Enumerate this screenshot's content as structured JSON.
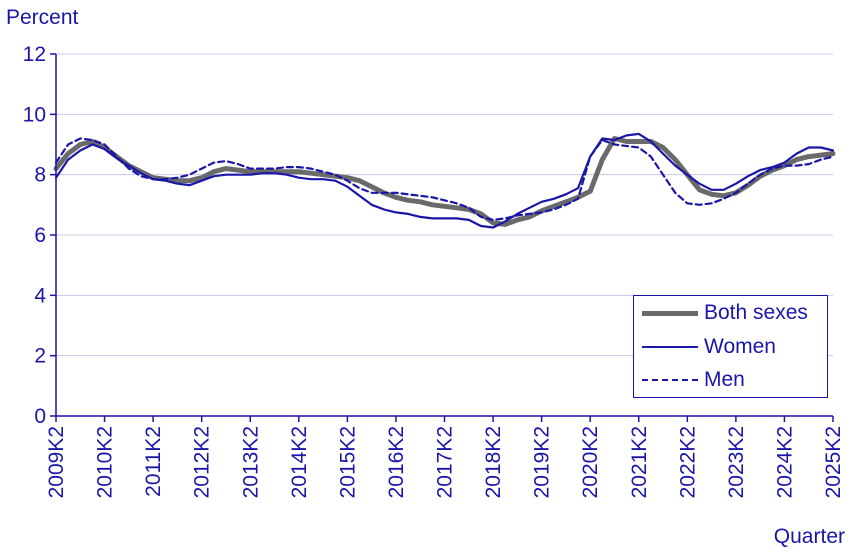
{
  "chart_data": {
    "type": "line",
    "ylabel": "Percent",
    "xlabel": "Quarter",
    "ylim": [
      0,
      12
    ],
    "yticks": [
      0,
      2,
      4,
      6,
      8,
      10,
      12
    ],
    "xtick_labels": [
      "2009K2",
      "2010K2",
      "2011K2",
      "2012K2",
      "2013K2",
      "2014K2",
      "2015K2",
      "2016K2",
      "2017K2",
      "2018K2",
      "2019K2",
      "2020K2",
      "2021K2",
      "2022K2",
      "2023K2",
      "2024K2",
      "2025K2"
    ],
    "grid": "horizontal",
    "legend_position": "bottom-right",
    "x": [
      "2009K2",
      "2009K3",
      "2009K4",
      "2010K1",
      "2010K2",
      "2010K3",
      "2010K4",
      "2011K1",
      "2011K2",
      "2011K3",
      "2011K4",
      "2012K1",
      "2012K2",
      "2012K3",
      "2012K4",
      "2013K1",
      "2013K2",
      "2013K3",
      "2013K4",
      "2014K1",
      "2014K2",
      "2014K3",
      "2014K4",
      "2015K1",
      "2015K2",
      "2015K3",
      "2015K4",
      "2016K1",
      "2016K2",
      "2016K3",
      "2016K4",
      "2017K1",
      "2017K2",
      "2017K3",
      "2017K4",
      "2018K1",
      "2018K2",
      "2018K3",
      "2018K4",
      "2019K1",
      "2019K2",
      "2019K3",
      "2019K4",
      "2020K1",
      "2020K2",
      "2020K3",
      "2020K4",
      "2021K1",
      "2021K2",
      "2021K3",
      "2021K4",
      "2022K1",
      "2022K2",
      "2022K3",
      "2022K4",
      "2023K1",
      "2023K2",
      "2023K3",
      "2023K4",
      "2024K1",
      "2024K2",
      "2024K3",
      "2024K4",
      "2025K1",
      "2025K2"
    ],
    "series": [
      {
        "name": "Both sexes",
        "color": "#6a6a6a",
        "style": "thick",
        "values": [
          8.2,
          8.7,
          9.0,
          9.1,
          8.9,
          8.6,
          8.3,
          8.1,
          7.9,
          7.85,
          7.8,
          7.8,
          7.9,
          8.1,
          8.2,
          8.15,
          8.1,
          8.1,
          8.1,
          8.1,
          8.1,
          8.05,
          8.0,
          7.95,
          7.9,
          7.8,
          7.6,
          7.4,
          7.25,
          7.15,
          7.1,
          7.0,
          6.95,
          6.9,
          6.85,
          6.7,
          6.4,
          6.35,
          6.5,
          6.6,
          6.8,
          6.95,
          7.1,
          7.25,
          7.45,
          8.5,
          9.2,
          9.1,
          9.1,
          9.1,
          8.9,
          8.5,
          8.0,
          7.5,
          7.35,
          7.3,
          7.4,
          7.65,
          7.95,
          8.15,
          8.3,
          8.5,
          8.6,
          8.65,
          8.7
        ]
      },
      {
        "name": "Women",
        "color": "#1a17a8",
        "style": "solid",
        "values": [
          7.9,
          8.5,
          8.8,
          9.0,
          8.85,
          8.55,
          8.3,
          8.05,
          7.85,
          7.8,
          7.7,
          7.65,
          7.8,
          7.95,
          8.0,
          8.0,
          8.0,
          8.05,
          8.05,
          8.0,
          7.9,
          7.85,
          7.85,
          7.8,
          7.6,
          7.3,
          7.0,
          6.85,
          6.75,
          6.7,
          6.6,
          6.55,
          6.55,
          6.55,
          6.5,
          6.3,
          6.25,
          6.45,
          6.7,
          6.9,
          7.1,
          7.2,
          7.35,
          7.55,
          8.6,
          9.2,
          9.15,
          9.3,
          9.35,
          9.1,
          8.7,
          8.3,
          8.0,
          7.7,
          7.5,
          7.5,
          7.7,
          7.95,
          8.15,
          8.25,
          8.4,
          8.7,
          8.9,
          8.9,
          8.8
        ]
      },
      {
        "name": "Men",
        "color": "#1a17a8",
        "style": "dashed",
        "values": [
          8.4,
          9.0,
          9.2,
          9.15,
          9.0,
          8.6,
          8.2,
          7.95,
          7.85,
          7.85,
          7.9,
          8.0,
          8.2,
          8.4,
          8.45,
          8.35,
          8.2,
          8.2,
          8.2,
          8.25,
          8.25,
          8.2,
          8.1,
          8.0,
          7.8,
          7.55,
          7.4,
          7.4,
          7.4,
          7.35,
          7.3,
          7.25,
          7.15,
          7.05,
          6.9,
          6.6,
          6.5,
          6.55,
          6.65,
          6.7,
          6.75,
          6.85,
          7.0,
          7.2,
          8.6,
          9.15,
          9.0,
          8.95,
          8.9,
          8.6,
          8.0,
          7.4,
          7.05,
          7.0,
          7.05,
          7.2,
          7.4,
          7.7,
          8.0,
          8.2,
          8.3,
          8.3,
          8.35,
          8.5,
          8.6
        ]
      }
    ]
  },
  "legend": {
    "both": "Both sexes",
    "women": "Women",
    "men": "Men"
  }
}
